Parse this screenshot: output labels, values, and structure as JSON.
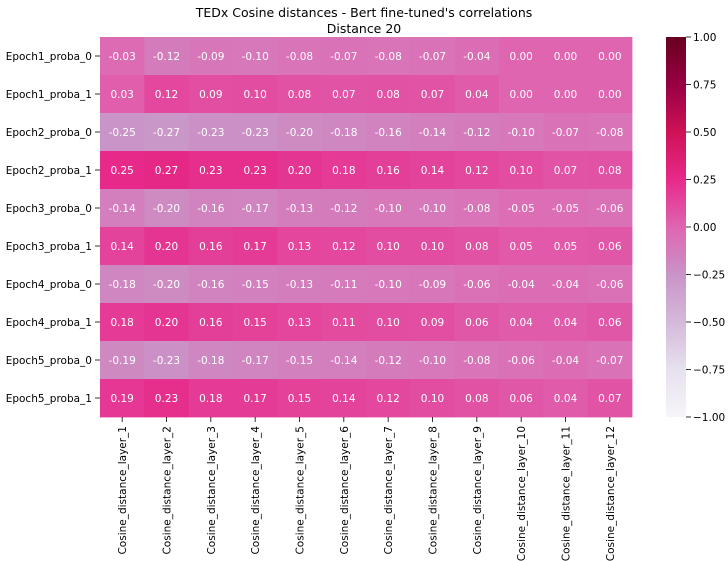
{
  "chart_data": {
    "type": "heatmap",
    "title": "TEDx Cosine distances - Bert fine-tuned's correlations",
    "subtitle": "Distance 20",
    "rows": [
      "Epoch1_proba_0",
      "Epoch1_proba_1",
      "Epoch2_proba_0",
      "Epoch2_proba_1",
      "Epoch3_proba_0",
      "Epoch3_proba_1",
      "Epoch4_proba_0",
      "Epoch4_proba_1",
      "Epoch5_proba_0",
      "Epoch5_proba_1"
    ],
    "columns": [
      "Cosine_distance_layer_1",
      "Cosine_distance_layer_2",
      "Cosine_distance_layer_3",
      "Cosine_distance_layer_4",
      "Cosine_distance_layer_5",
      "Cosine_distance_layer_6",
      "Cosine_distance_layer_7",
      "Cosine_distance_layer_8",
      "Cosine_distance_layer_9",
      "Cosine_distance_layer_10",
      "Cosine_distance_layer_11",
      "Cosine_distance_layer_12"
    ],
    "values": [
      [
        -0.03,
        -0.12,
        -0.09,
        -0.1,
        -0.08,
        -0.07,
        -0.08,
        -0.07,
        -0.04,
        -0.0,
        -0.0,
        0.0
      ],
      [
        0.03,
        0.12,
        0.09,
        0.1,
        0.08,
        0.07,
        0.08,
        0.07,
        0.04,
        0.0,
        0.0,
        -0.0
      ],
      [
        -0.25,
        -0.27,
        -0.23,
        -0.23,
        -0.2,
        -0.18,
        -0.16,
        -0.14,
        -0.12,
        -0.1,
        -0.07,
        -0.08
      ],
      [
        0.25,
        0.27,
        0.23,
        0.23,
        0.2,
        0.18,
        0.16,
        0.14,
        0.12,
        0.1,
        0.07,
        0.08
      ],
      [
        -0.14,
        -0.2,
        -0.16,
        -0.17,
        -0.13,
        -0.12,
        -0.1,
        -0.1,
        -0.08,
        -0.05,
        -0.05,
        -0.06
      ],
      [
        0.14,
        0.2,
        0.16,
        0.17,
        0.13,
        0.12,
        0.1,
        0.1,
        0.08,
        0.05,
        0.05,
        0.06
      ],
      [
        -0.18,
        -0.2,
        -0.16,
        -0.15,
        -0.13,
        -0.11,
        -0.1,
        -0.09,
        -0.06,
        -0.04,
        -0.04,
        -0.06
      ],
      [
        0.18,
        0.2,
        0.16,
        0.15,
        0.13,
        0.11,
        0.1,
        0.09,
        0.06,
        0.04,
        0.04,
        0.06
      ],
      [
        -0.19,
        -0.23,
        -0.18,
        -0.17,
        -0.15,
        -0.14,
        -0.12,
        -0.1,
        -0.08,
        -0.06,
        -0.04,
        -0.07
      ],
      [
        0.19,
        0.23,
        0.18,
        0.17,
        0.15,
        0.14,
        0.12,
        0.1,
        0.08,
        0.06,
        0.04,
        0.07
      ]
    ],
    "colorbar": {
      "min": -1.0,
      "max": 1.0,
      "ticks": [
        1.0,
        0.75,
        0.5,
        0.25,
        0.0,
        -0.25,
        -0.5,
        -0.75,
        -1.0
      ],
      "tick_labels": [
        "1.00",
        "0.75",
        "0.50",
        "0.25",
        "0.00",
        "−0.25",
        "−0.50",
        "−0.75",
        "−1.00"
      ],
      "colormap": "PuRd",
      "stops": [
        "#f7f4f9",
        "#e7e1ef",
        "#d4b9da",
        "#c994c7",
        "#df65b0",
        "#e7298a",
        "#ce1256",
        "#980043",
        "#67001f"
      ]
    },
    "grid": false
  }
}
